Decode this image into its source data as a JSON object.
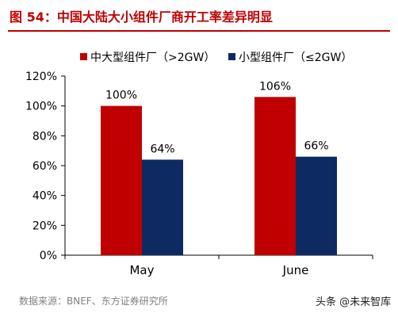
{
  "figure": {
    "title": "图 54：中国大陆大小组件厂商开工率差异明显",
    "source": "数据来源：BNEF、东方证券研究所",
    "watermark": "头条 @未来智库"
  },
  "chart_data": {
    "type": "bar",
    "categories": [
      "May",
      "June"
    ],
    "series": [
      {
        "name": "中大型组件厂（>2GW）",
        "values": [
          100,
          106
        ],
        "labels": [
          "100%",
          "106%"
        ],
        "color": "#c00000"
      },
      {
        "name": "小型组件厂（≤2GW）",
        "values": [
          64,
          66
        ],
        "labels": [
          "64%",
          "66%"
        ],
        "color": "#0d2a62"
      }
    ],
    "ylim": [
      0,
      120
    ],
    "yticks": [
      0,
      20,
      40,
      60,
      80,
      100,
      120
    ],
    "ytick_labels": [
      "0%",
      "20%",
      "40%",
      "60%",
      "80%",
      "100%",
      "120%"
    ],
    "grid": false,
    "legend_position": "top"
  }
}
